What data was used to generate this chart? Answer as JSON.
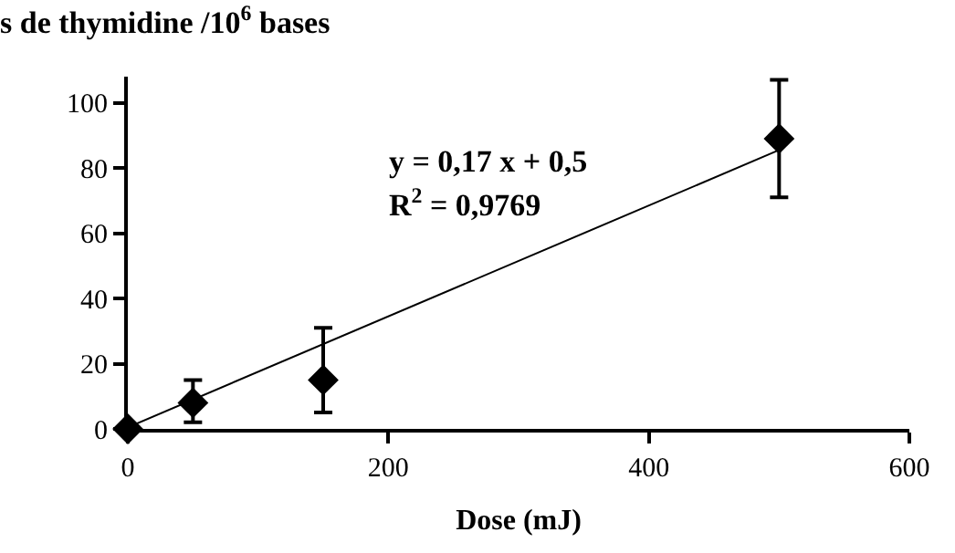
{
  "chart_data": {
    "type": "scatter",
    "title": "s de thymidine /10$^{6}$ bases",
    "xlabel": "Dose (mJ)",
    "annotations": [
      "y = 0,17 x + 0,5",
      "R$^{2}$ = 0,9769"
    ],
    "series": [
      {
        "color": "#000000",
        "x": [
          0,
          50,
          150,
          500
        ],
        "values": [
          0,
          8,
          15,
          89
        ],
        "errors": [
          null,
          [
            2,
            15
          ],
          [
            5,
            31
          ],
          [
            71,
            107
          ]
        ],
        "marker": "diamond"
      },
      {
        "type": "line",
        "color": "#000000",
        "x": [
          0,
          500
        ],
        "values": [
          0.5,
          85.5
        ],
        "marker": "none"
      }
    ],
    "xlim": [
      0,
      600
    ],
    "xticks": [
      0,
      200,
      400,
      600
    ],
    "ylim": [
      0,
      108
    ],
    "yticks": [
      0,
      20,
      40,
      60,
      80,
      100
    ]
  }
}
